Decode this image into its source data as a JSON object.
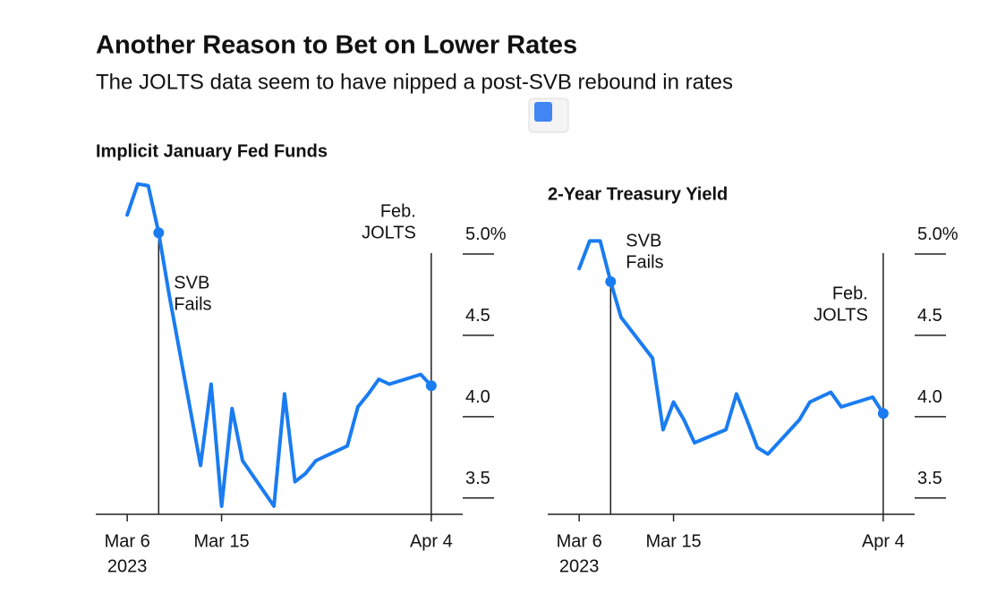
{
  "header": {
    "title": "Another Reason to Bet on Lower Rates",
    "subtitle": "The JOLTS data seem to have nipped a post-SVB rebound in rates"
  },
  "chart_data": [
    {
      "type": "line",
      "title": "Implicit January Fed Funds",
      "color": "#1a7cf0",
      "x": [
        "2023-03-06",
        "2023-03-07",
        "2023-03-08",
        "2023-03-09",
        "2023-03-10",
        "2023-03-13",
        "2023-03-14",
        "2023-03-15",
        "2023-03-16",
        "2023-03-17",
        "2023-03-20",
        "2023-03-21",
        "2023-03-22",
        "2023-03-23",
        "2023-03-24",
        "2023-03-27",
        "2023-03-28",
        "2023-03-29",
        "2023-03-30",
        "2023-03-31",
        "2023-04-03",
        "2023-04-04"
      ],
      "values": [
        5.24,
        5.43,
        5.42,
        5.13,
        4.75,
        3.7,
        4.2,
        3.45,
        4.05,
        3.73,
        3.45,
        4.14,
        3.6,
        3.65,
        3.73,
        3.82,
        4.06,
        4.14,
        4.23,
        4.2,
        4.26,
        4.19
      ],
      "xlim": [
        "2023-03-03",
        "2023-04-07"
      ],
      "xticks": [
        {
          "value": "2023-03-06",
          "label": "Mar 6"
        },
        {
          "value": "2023-03-15",
          "label": "Mar 15"
        },
        {
          "value": "2023-04-04",
          "label": "Apr 4"
        }
      ],
      "xtick_year": "2023",
      "ylim": [
        3.4,
        5.5
      ],
      "yticks": [
        {
          "value": 5.0,
          "label": "5.0%"
        },
        {
          "value": 4.5,
          "label": "4.5"
        },
        {
          "value": 4,
          "label": "4.0"
        },
        {
          "value": 3.5,
          "label": "3.5"
        }
      ],
      "annotations": [
        {
          "text": [
            "SVB",
            "Fails"
          ],
          "x": "2023-03-09"
        },
        {
          "text": [
            "Feb.",
            "JOLTS"
          ],
          "x": "2023-04-04"
        }
      ]
    },
    {
      "type": "line",
      "title": "2-Year Treasury Yield",
      "color": "#1a7cf0",
      "x": [
        "2023-03-06",
        "2023-03-07",
        "2023-03-08",
        "2023-03-09",
        "2023-03-10",
        "2023-03-13",
        "2023-03-14",
        "2023-03-15",
        "2023-03-16",
        "2023-03-17",
        "2023-03-20",
        "2023-03-21",
        "2023-03-22",
        "2023-03-23",
        "2023-03-24",
        "2023-03-27",
        "2023-03-28",
        "2023-03-29",
        "2023-03-30",
        "2023-03-31",
        "2023-04-03",
        "2023-04-04"
      ],
      "values": [
        4.91,
        5.08,
        5.08,
        4.83,
        4.61,
        4.36,
        3.92,
        4.09,
        3.98,
        3.84,
        3.92,
        4.14,
        3.98,
        3.81,
        3.77,
        3.98,
        4.09,
        4.12,
        4.15,
        4.06,
        4.12,
        4.02
      ],
      "xlim": [
        "2023-03-03",
        "2023-04-07"
      ],
      "xticks": [
        {
          "value": "2023-03-06",
          "label": "Mar 6"
        },
        {
          "value": "2023-03-15",
          "label": "Mar 15"
        },
        {
          "value": "2023-04-04",
          "label": "Apr 4"
        }
      ],
      "xtick_year": "2023",
      "ylim": [
        3.4,
        5.5
      ],
      "yticks": [
        {
          "value": 5.0,
          "label": "5.0%"
        },
        {
          "value": 4.5,
          "label": "4.5"
        },
        {
          "value": 4,
          "label": "4.0"
        },
        {
          "value": 3.5,
          "label": "3.5"
        }
      ],
      "annotations": [
        {
          "text": [
            "SVB",
            "Fails"
          ],
          "x": "2023-03-09"
        },
        {
          "text": [
            "Feb.",
            "JOLTS"
          ],
          "x": "2023-04-04"
        }
      ]
    }
  ]
}
